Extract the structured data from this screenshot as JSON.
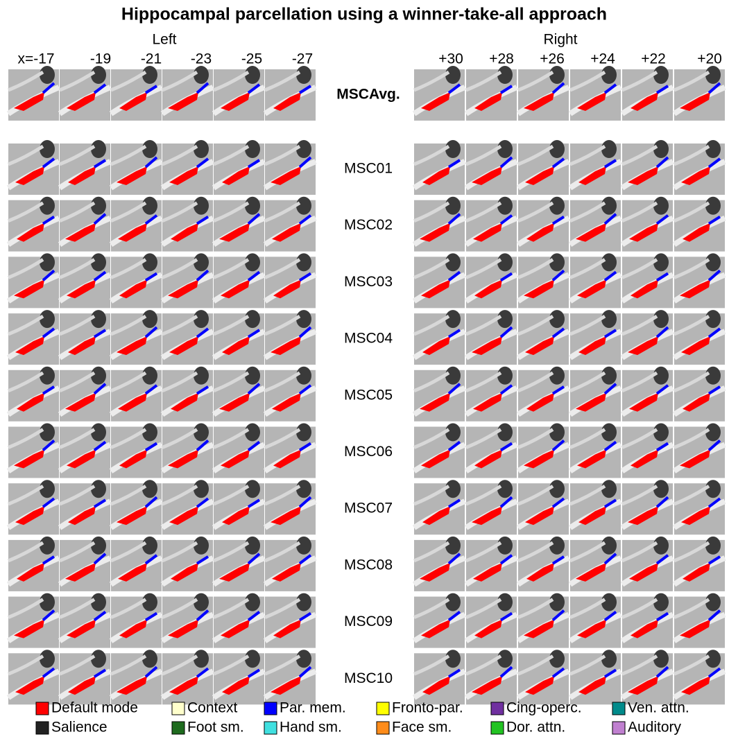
{
  "title": "Hippocampal parcellation using a winner-take-all approach",
  "left": {
    "label": "Left",
    "slices": [
      "x=-17",
      "-19",
      "-21",
      "-23",
      "-25",
      "-27"
    ]
  },
  "right": {
    "label": "Right",
    "slices": [
      "+30",
      "+28",
      "+26",
      "+24",
      "+22",
      "+20"
    ]
  },
  "rows": [
    "MSCAvg.",
    "MSC01",
    "MSC02",
    "MSC03",
    "MSC04",
    "MSC05",
    "MSC06",
    "MSC07",
    "MSC08",
    "MSC09",
    "MSC10"
  ],
  "legend": [
    {
      "label": "Default mode",
      "color": "#ff0000"
    },
    {
      "label": "Context",
      "color": "#ffffcc"
    },
    {
      "label": "Par. mem.",
      "color": "#0000ff"
    },
    {
      "label": "Fronto-par.",
      "color": "#ffff00"
    },
    {
      "label": "Cing-operc.",
      "color": "#7030a0"
    },
    {
      "label": "Ven. attn.",
      "color": "#008b8b"
    },
    {
      "label": "Salience",
      "color": "#222222"
    },
    {
      "label": "Foot sm.",
      "color": "#1e6b1e"
    },
    {
      "label": "Hand sm.",
      "color": "#40e0e0"
    },
    {
      "label": "Face sm.",
      "color": "#ff8c1a"
    },
    {
      "label": "Dor. attn.",
      "color": "#22c322"
    },
    {
      "label": "Auditory",
      "color": "#c080d0"
    }
  ]
}
